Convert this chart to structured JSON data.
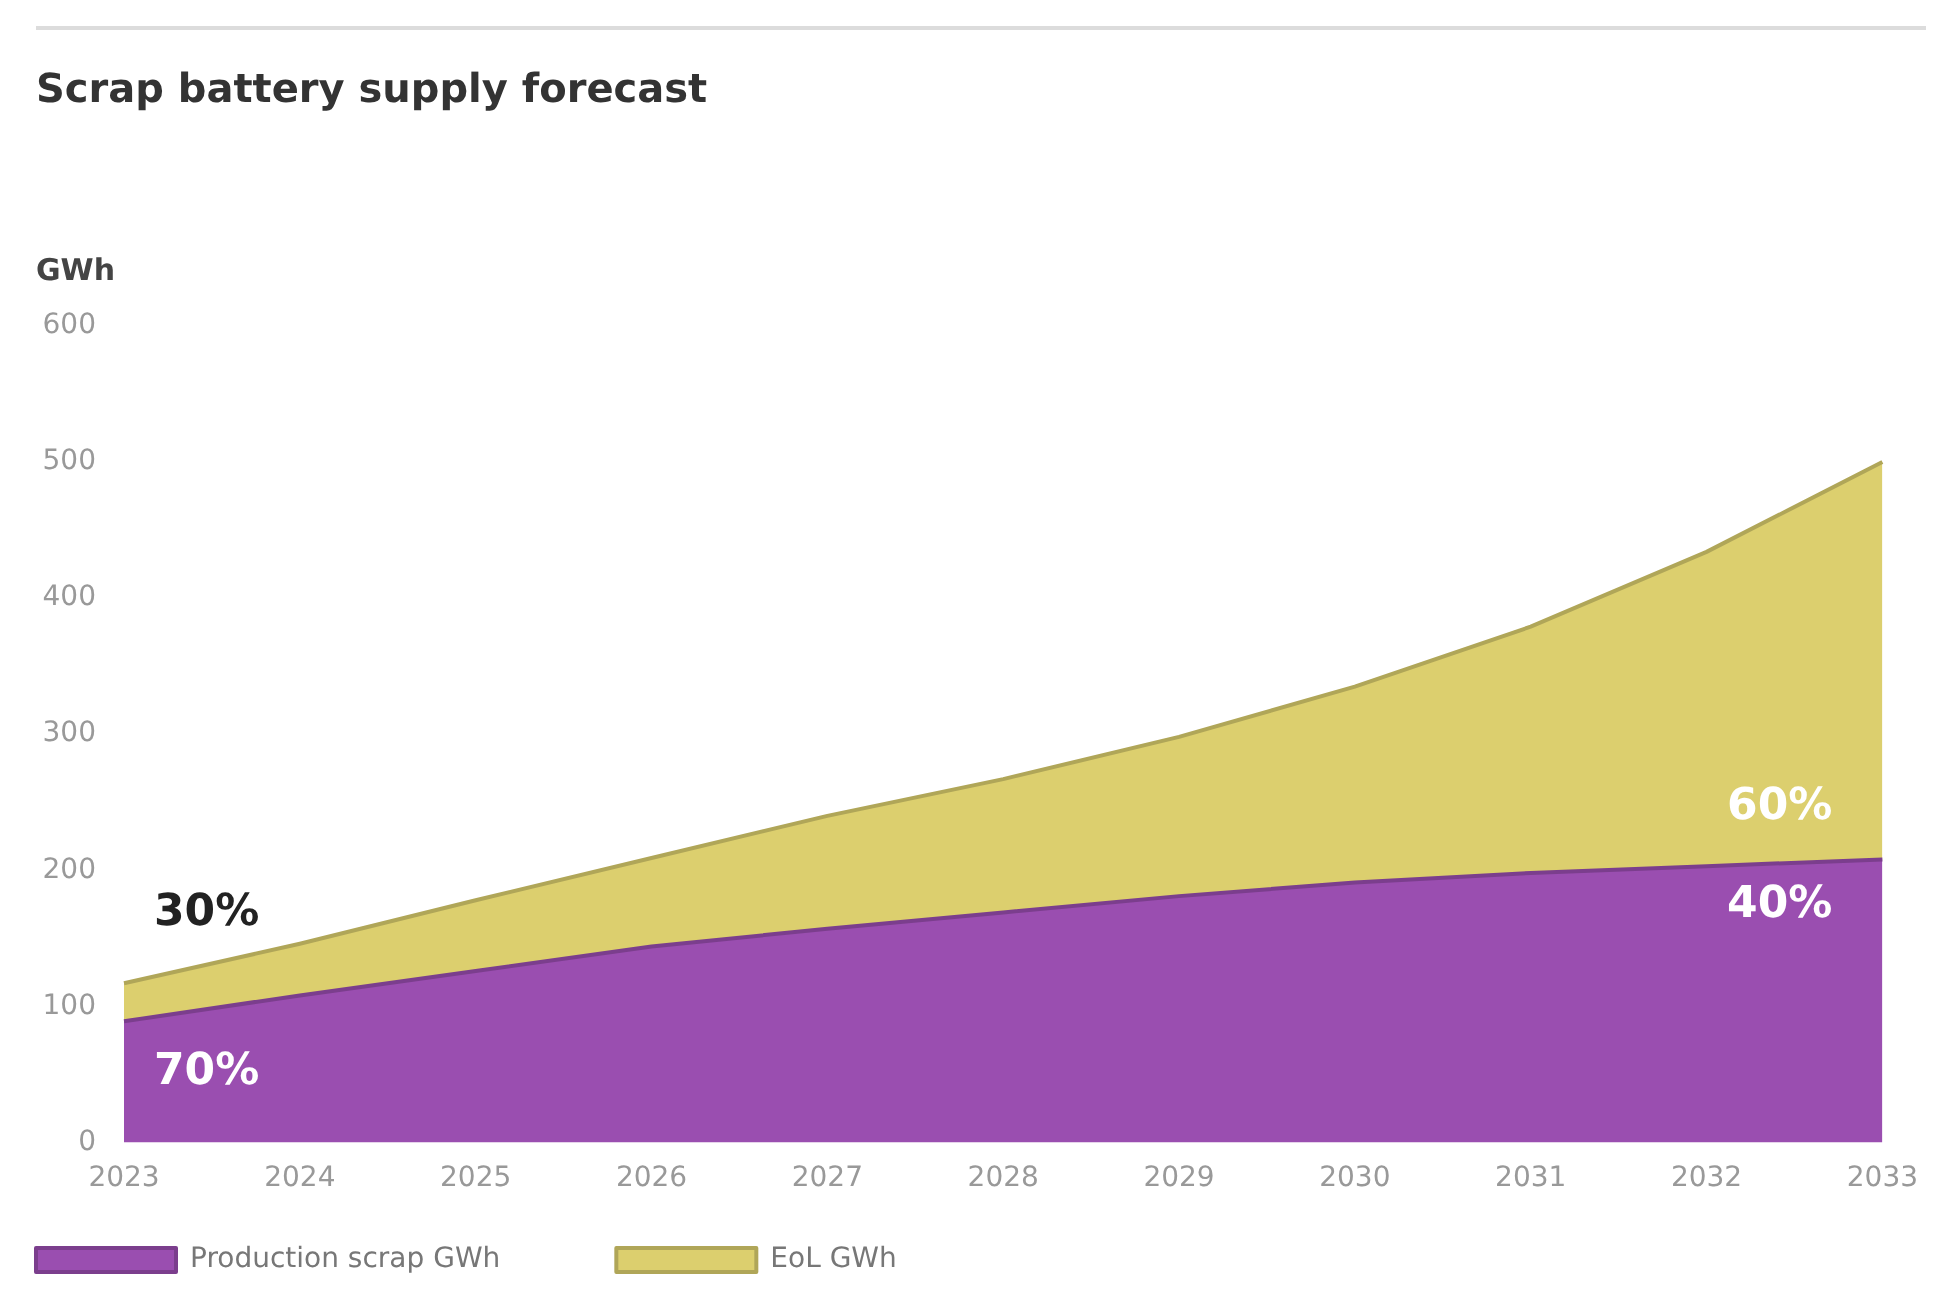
{
  "chart_data": {
    "type": "area",
    "title": "Scrap battery supply forecast",
    "ylabel": "GWh",
    "categories": [
      "2023",
      "2024",
      "2025",
      "2026",
      "2027",
      "2028",
      "2029",
      "2030",
      "2031",
      "2032",
      "2033"
    ],
    "series": [
      {
        "name": "Production scrap GWh",
        "color": "#9a4eb0",
        "values": [
          89,
          108,
          126,
          144,
          157,
          169,
          181,
          191,
          198,
          203,
          208
        ]
      },
      {
        "name": "EoL GWh",
        "color": "#dccf6e",
        "values": [
          28,
          38,
          52,
          65,
          83,
          98,
          117,
          144,
          181,
          231,
          292
        ]
      }
    ],
    "stacked": true,
    "ylim": [
      0,
      600
    ],
    "yticks": [
      0,
      100,
      200,
      300,
      400,
      500,
      600
    ],
    "legend": "bottom left",
    "marker": "none",
    "annotations": [
      "30%",
      {
        "text": "70%",
        "x": "2023",
        "y": 51
      },
      {
        "text": "60%",
        "x": "2033",
        "y": 246
      },
      {
        "text": "40%",
        "x": "2033",
        "y": 174
      }
    ]
  }
}
